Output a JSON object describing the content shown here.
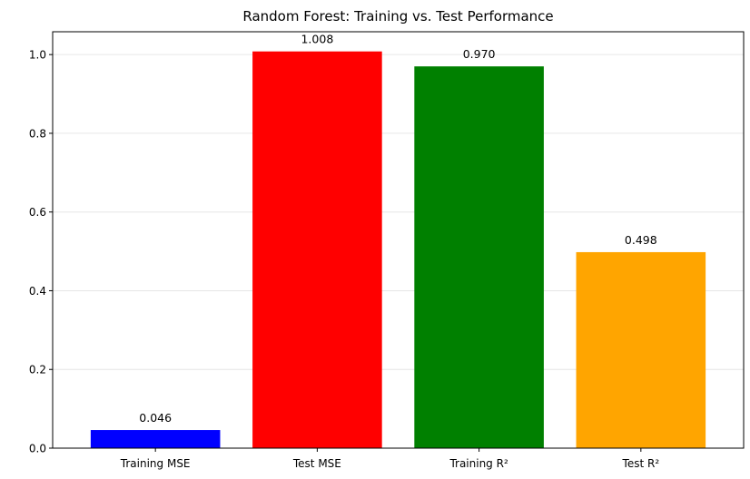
{
  "chart_data": {
    "type": "bar",
    "title": "Random Forest: Training vs. Test Performance",
    "xlabel": "",
    "ylabel": "",
    "categories": [
      "Training MSE",
      "Test MSE",
      "Training R²",
      "Test R²"
    ],
    "values": [
      0.046,
      1.008,
      0.97,
      0.498
    ],
    "value_labels": [
      "0.046",
      "1.008",
      "0.970",
      "0.498"
    ],
    "colors": [
      "#0000ff",
      "#ff0000",
      "#008000",
      "#ffa500"
    ],
    "ylim": [
      0,
      1.058
    ],
    "yticks": [
      0.0,
      0.2,
      0.4,
      0.6,
      0.8,
      1.0
    ],
    "ytick_labels": [
      "0.0",
      "0.2",
      "0.4",
      "0.6",
      "0.8",
      "1.0"
    ],
    "grid": "y-axis, light gray",
    "legend": "none"
  }
}
